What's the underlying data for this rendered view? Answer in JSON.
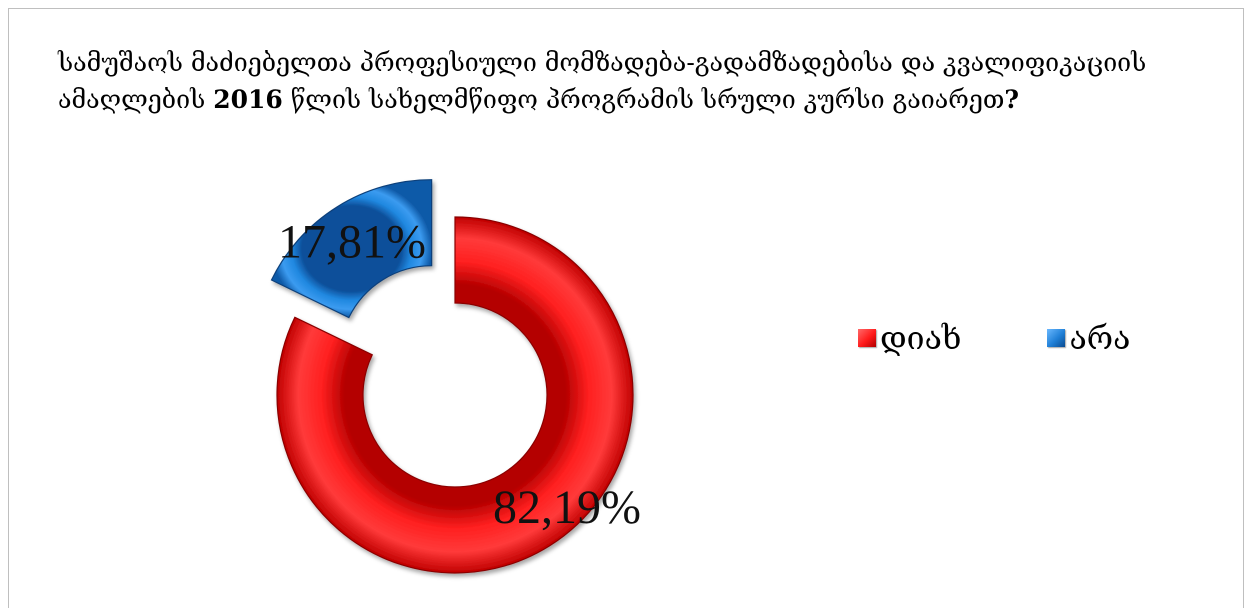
{
  "chart_data": {
    "type": "pie",
    "variant": "doughnut-exploded",
    "title_parts": [
      {
        "text": "სამუშაოს მაძიებელთა პროფესიული მომზადება-გადამზადებისა და კვალიფიკაციის ამაღლების ",
        "bold": false
      },
      {
        "text": "2016",
        "bold": true
      },
      {
        "text": " წლის სახელმწიფო პროგრამის სრული კურსი გაიარეთ",
        "bold": false
      },
      {
        "text": "?",
        "bold": true
      }
    ],
    "categories": [
      "დიახ",
      "არა"
    ],
    "values": [
      82.19,
      17.81
    ],
    "data_labels": [
      "82,19%",
      "17,81%"
    ],
    "colors": [
      "#ff1a1a",
      "#1f7fd6"
    ],
    "legend_position": "right"
  }
}
